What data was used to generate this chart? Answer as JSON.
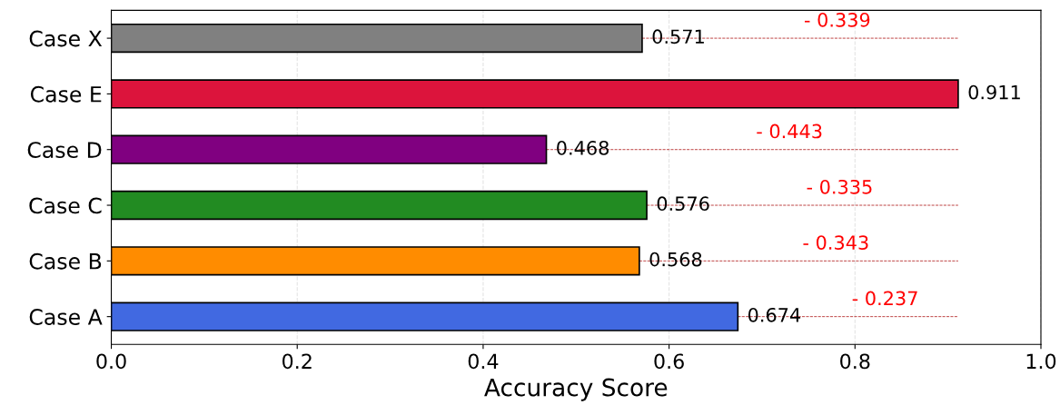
{
  "chart_data": {
    "type": "bar",
    "orientation": "horizontal",
    "xlabel": "Accuracy Score",
    "categories": [
      "Case X",
      "Case E",
      "Case D",
      "Case C",
      "Case B",
      "Case A"
    ],
    "values": [
      0.571,
      0.911,
      0.468,
      0.576,
      0.568,
      0.674
    ],
    "colors": [
      "#808080",
      "#dc143c",
      "#800080",
      "#228b22",
      "#ff8c00",
      "#4169e1"
    ],
    "data_labels": true,
    "xlim": [
      0.0,
      1.0
    ],
    "xticks": [
      {
        "value": 0.0,
        "label": "0.0"
      },
      0.2,
      0.4,
      0.6,
      0.8,
      {
        "value": 1.0,
        "label": "1.0"
      }
    ],
    "grid": "x",
    "annotations": [
      "- 0.339",
      "- 0.443",
      "- 0.335",
      "- 0.343",
      "- 0.237"
    ]
  }
}
